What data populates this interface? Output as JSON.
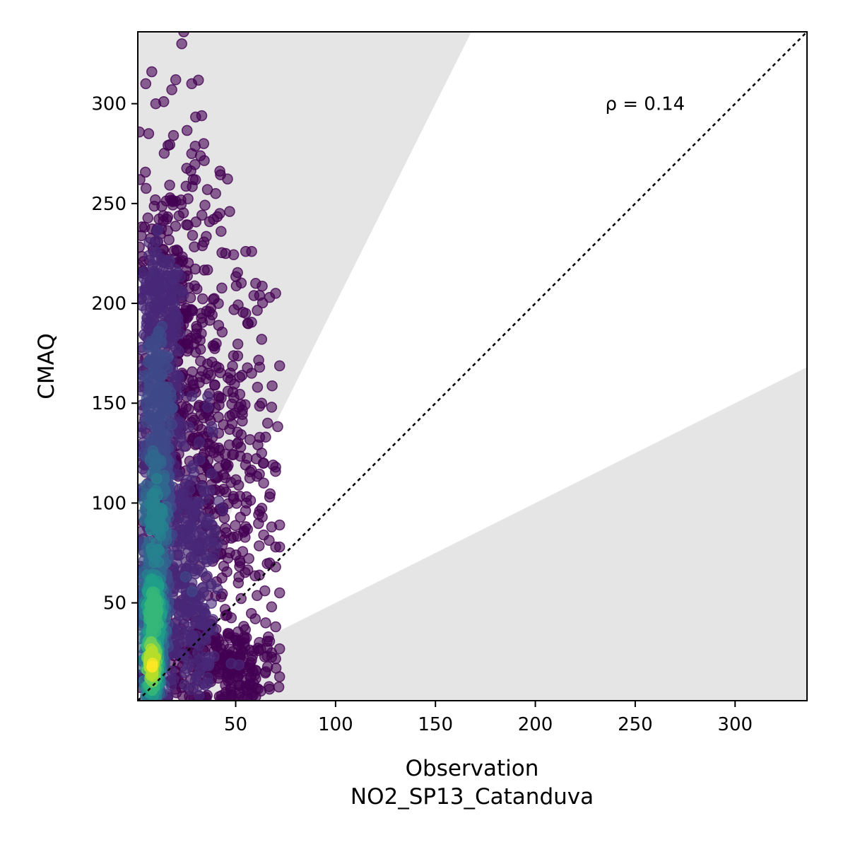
{
  "chart_data": {
    "type": "scatter",
    "xlabel": "Observation",
    "xlabel_sub": "NO2_SP13_Catanduva",
    "ylabel": "CMAQ",
    "xlim": [
      1,
      336
    ],
    "ylim": [
      1,
      336
    ],
    "xticks": [
      50,
      100,
      150,
      200,
      250,
      300
    ],
    "yticks": [
      50,
      100,
      150,
      200,
      250,
      300
    ],
    "annotation": {
      "text": "ρ = 0.14",
      "x": 235,
      "y": 300
    },
    "identity_line": true,
    "bands": [
      {
        "slope_low": 2.0,
        "slope_high": 1000,
        "color": "#e5e5e5"
      },
      {
        "slope_low": 0,
        "slope_high": 0.5,
        "color": "#e5e5e5"
      }
    ],
    "colormap": [
      "#440154",
      "#482878",
      "#3e4a89",
      "#31688e",
      "#26828e",
      "#1f9e89",
      "#35b779",
      "#6ece58",
      "#b5de2b",
      "#fde725"
    ],
    "grid": false,
    "density_clusters": [
      {
        "x": 8,
        "y": 20,
        "sx": 3,
        "sy": 12,
        "n": 200,
        "d": 0.95
      },
      {
        "x": 9,
        "y": 45,
        "sx": 4,
        "sy": 18,
        "n": 260,
        "d": 0.7
      },
      {
        "x": 10,
        "y": 90,
        "sx": 5,
        "sy": 30,
        "n": 320,
        "d": 0.45
      },
      {
        "x": 11,
        "y": 150,
        "sx": 6,
        "sy": 35,
        "n": 300,
        "d": 0.25
      },
      {
        "x": 12,
        "y": 200,
        "sx": 7,
        "sy": 20,
        "n": 200,
        "d": 0.12
      },
      {
        "x": 25,
        "y": 60,
        "sx": 10,
        "sy": 35,
        "n": 380,
        "d": 0.15
      },
      {
        "x": 30,
        "y": 140,
        "sx": 12,
        "sy": 45,
        "n": 300,
        "d": 0.04
      },
      {
        "x": 40,
        "y": 20,
        "sx": 15,
        "sy": 12,
        "n": 250,
        "d": 0.04
      },
      {
        "x": 50,
        "y": 110,
        "sx": 10,
        "sy": 50,
        "n": 130,
        "d": 0.0
      },
      {
        "x": 20,
        "y": 240,
        "sx": 10,
        "sy": 30,
        "n": 80,
        "d": 0.0
      }
    ],
    "outlier_points": [
      [
        5,
        310
      ],
      [
        8,
        316
      ],
      [
        10,
        300
      ],
      [
        14,
        301
      ],
      [
        18,
        307
      ],
      [
        20,
        312
      ],
      [
        23,
        330
      ],
      [
        24,
        336
      ],
      [
        28,
        310
      ],
      [
        33,
        294
      ],
      [
        28,
        275
      ],
      [
        34,
        280
      ],
      [
        40,
        255
      ],
      [
        42,
        245
      ],
      [
        47,
        246
      ],
      [
        45,
        225
      ],
      [
        55,
        226
      ],
      [
        58,
        226
      ],
      [
        60,
        210
      ],
      [
        62,
        204
      ],
      [
        67,
        203
      ],
      [
        70,
        205
      ],
      [
        55,
        195
      ],
      [
        56,
        190
      ],
      [
        63,
        182
      ],
      [
        62,
        168
      ],
      [
        58,
        165
      ],
      [
        63,
        150
      ],
      [
        68,
        148
      ],
      [
        66,
        140
      ],
      [
        65,
        133
      ],
      [
        63,
        125
      ],
      [
        64,
        120
      ],
      [
        70,
        118
      ],
      [
        64,
        110
      ],
      [
        67,
        103
      ],
      [
        62,
        96
      ],
      [
        68,
        88
      ],
      [
        72,
        89
      ],
      [
        64,
        84
      ],
      [
        70,
        78
      ],
      [
        72,
        78
      ],
      [
        67,
        70
      ],
      [
        70,
        68
      ],
      [
        72,
        55
      ],
      [
        68,
        48
      ],
      [
        65,
        40
      ],
      [
        70,
        38
      ],
      [
        72,
        27
      ],
      [
        68,
        25
      ],
      [
        70,
        22
      ],
      [
        72,
        13
      ],
      [
        66,
        18
      ],
      [
        60,
        12
      ],
      [
        55,
        8
      ],
      [
        52,
        5
      ],
      [
        48,
        4
      ],
      [
        45,
        3
      ],
      [
        60,
        3
      ],
      [
        35,
        3
      ]
    ]
  }
}
